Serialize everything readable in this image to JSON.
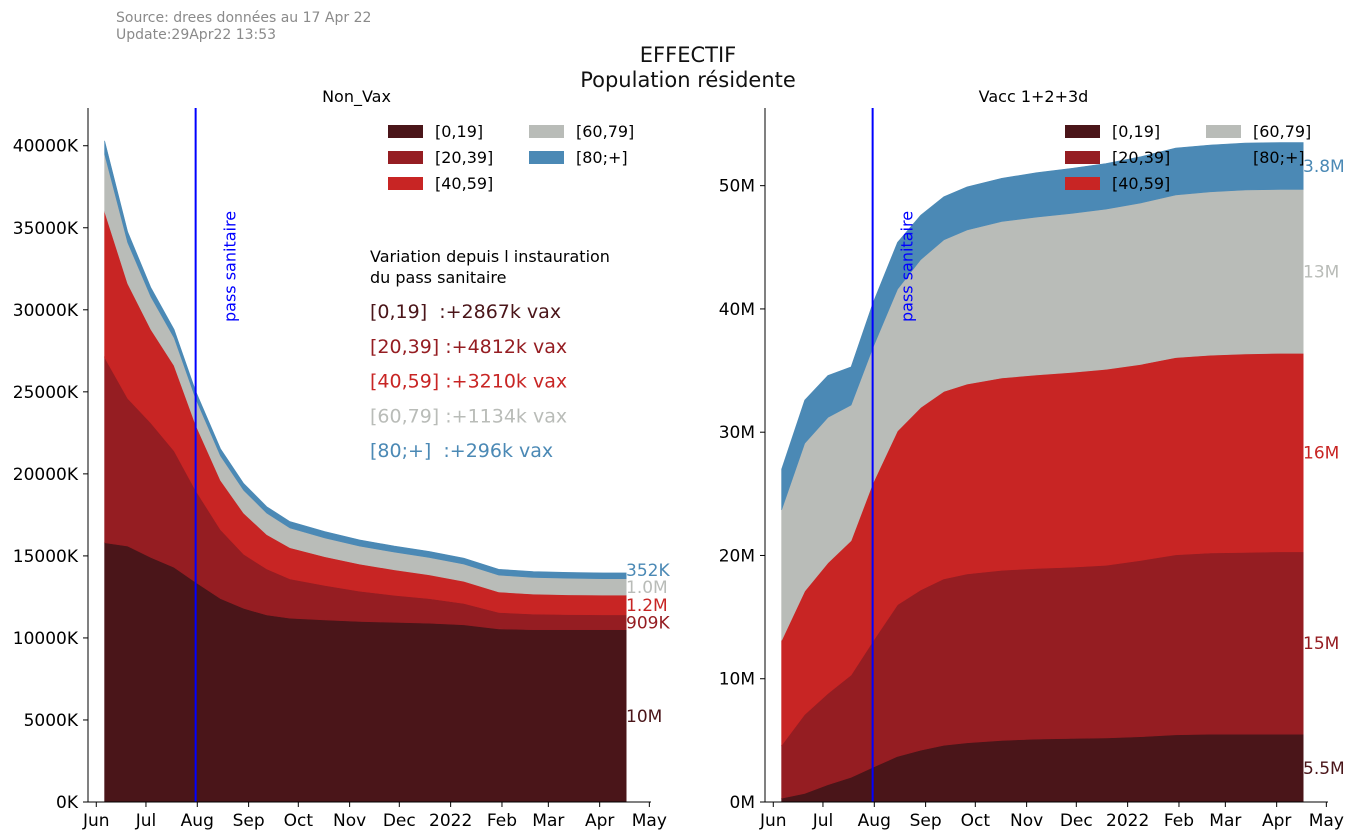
{
  "source_line": "Source: drees données au 17 Apr 22",
  "update_line": "Update:29Apr22 13:53",
  "title_line1": "EFFECTIF",
  "title_line2": "Population résidente",
  "colors": {
    "age_0_19": "#4a1519",
    "age_20_39": "#951d22",
    "age_40_59": "#c82524",
    "age_60_79": "#b9bcb8",
    "age_80_plus": "#4b89b5",
    "vline": "#0000ff"
  },
  "chart_data": [
    {
      "type": "area",
      "stacked": true,
      "title": "Non_Vax",
      "x_tick_labels": [
        "Jun",
        "Jul",
        "Aug",
        "Sep",
        "Oct",
        "Nov",
        "Dec",
        "2022",
        "Feb",
        "Mar",
        "Apr",
        "May"
      ],
      "x_ticks": [
        "2021-06-01",
        "2021-07-01",
        "2021-08-01",
        "2021-09-01",
        "2021-10-01",
        "2021-11-01",
        "2021-12-01",
        "2022-01-01",
        "2022-02-01",
        "2022-03-01",
        "2022-04-01",
        "2022-05-01"
      ],
      "xlim": [
        "2021-05-27",
        "2022-05-02"
      ],
      "ylim": [
        0,
        42300
      ],
      "y_ticks": [
        0,
        5000,
        10000,
        15000,
        20000,
        25000,
        30000,
        35000,
        40000
      ],
      "y_tick_labels": [
        "0K",
        "5000K",
        "10000K",
        "15000K",
        "20000K",
        "25000K",
        "30000K",
        "35000K",
        "40000K"
      ],
      "vertical_line": {
        "x": "2021-07-31",
        "label": "pass sanitaire"
      },
      "legend_position": "top-right",
      "legend_columns": 2,
      "x": [
        "2021-06-06",
        "2021-06-20",
        "2021-07-04",
        "2021-07-18",
        "2021-07-31",
        "2021-08-15",
        "2021-08-29",
        "2021-09-12",
        "2021-09-26",
        "2021-10-17",
        "2021-11-07",
        "2021-11-28",
        "2021-12-19",
        "2022-01-09",
        "2022-01-30",
        "2022-02-20",
        "2022-03-13",
        "2022-04-03",
        "2022-04-17"
      ],
      "series": [
        {
          "name": "[0,19]",
          "values": [
            15800,
            15600,
            14900,
            14300,
            13400,
            12400,
            11800,
            11400,
            11200,
            11100,
            11000,
            10950,
            10900,
            10800,
            10550,
            10500,
            10500,
            10500,
            10500
          ]
        },
        {
          "name": "[20,39]",
          "values": [
            11300,
            9000,
            8200,
            7100,
            5600,
            4200,
            3300,
            2800,
            2400,
            2100,
            1850,
            1650,
            1500,
            1300,
            1000,
            950,
            920,
            910,
            909
          ]
        },
        {
          "name": "[40,59]",
          "values": [
            8900,
            7000,
            5700,
            5200,
            4000,
            3000,
            2500,
            2100,
            1900,
            1750,
            1650,
            1550,
            1450,
            1350,
            1250,
            1220,
            1210,
            1200,
            1200
          ]
        },
        {
          "name": "[60,79]",
          "values": [
            3500,
            2500,
            2000,
            1700,
            1600,
            1500,
            1400,
            1300,
            1200,
            1150,
            1100,
            1080,
            1060,
            1050,
            1030,
            1020,
            1010,
            1000,
            1000
          ]
        },
        {
          "name": "[80;+]",
          "values": [
            800,
            650,
            550,
            500,
            450,
            430,
            410,
            400,
            390,
            380,
            375,
            370,
            365,
            360,
            355,
            354,
            353,
            352,
            352
          ]
        }
      ],
      "end_labels": [
        "10M",
        "909K",
        "1.2M",
        "1.0M",
        "352K"
      ],
      "annotation_title_line1": "Variation depuis l instauration",
      "annotation_title_line2": "du pass sanitaire",
      "annotations": [
        "[0,19]  :+2867k vax",
        "[20,39] :+4812k vax",
        "[40,59] :+3210k vax",
        "[60,79] :+1134k vax",
        "[80;+]  :+296k vax"
      ]
    },
    {
      "type": "area",
      "stacked": true,
      "title": "Vacc 1+2+3d",
      "x_tick_labels": [
        "Jun",
        "Jul",
        "Aug",
        "Sep",
        "Oct",
        "Nov",
        "Dec",
        "2022",
        "Feb",
        "Mar",
        "Apr",
        "May"
      ],
      "x_ticks": [
        "2021-06-01",
        "2021-07-01",
        "2021-08-01",
        "2021-09-01",
        "2021-10-01",
        "2021-11-01",
        "2021-12-01",
        "2022-01-01",
        "2022-02-01",
        "2022-03-01",
        "2022-04-01",
        "2022-05-01"
      ],
      "xlim": [
        "2021-05-27",
        "2022-05-02"
      ],
      "ylim": [
        0,
        56300000
      ],
      "y_ticks": [
        0,
        10000000,
        20000000,
        30000000,
        40000000,
        50000000
      ],
      "y_tick_labels": [
        "0M",
        "10M",
        "20M",
        "30M",
        "40M",
        "50M"
      ],
      "vertical_line": {
        "x": "2021-07-31",
        "label": "pass sanitaire"
      },
      "legend_position": "top-right",
      "legend_columns": 2,
      "x": [
        "2021-06-06",
        "2021-06-20",
        "2021-07-04",
        "2021-07-18",
        "2021-07-31",
        "2021-08-15",
        "2021-08-29",
        "2021-09-12",
        "2021-09-26",
        "2021-10-17",
        "2021-11-07",
        "2021-11-28",
        "2021-12-19",
        "2022-01-09",
        "2022-01-30",
        "2022-02-20",
        "2022-03-13",
        "2022-04-03",
        "2022-04-17"
      ],
      "series": [
        {
          "name": "[0,19]",
          "values": [
            300000,
            700000,
            1400000,
            2000000,
            2800000,
            3700000,
            4200000,
            4600000,
            4800000,
            5000000,
            5100000,
            5150000,
            5200000,
            5300000,
            5450000,
            5500000,
            5500000,
            5500000,
            5500000
          ]
        },
        {
          "name": "[20,39]",
          "values": [
            4300000,
            6400000,
            7400000,
            8300000,
            10200000,
            12300000,
            13000000,
            13500000,
            13700000,
            13800000,
            13850000,
            13900000,
            14000000,
            14300000,
            14600000,
            14700000,
            14750000,
            14800000,
            14800000
          ]
        },
        {
          "name": "[40,59]",
          "values": [
            8500000,
            10000000,
            10600000,
            10900000,
            12800000,
            14100000,
            14800000,
            15200000,
            15400000,
            15600000,
            15700000,
            15800000,
            15900000,
            15900000,
            16000000,
            16050000,
            16100000,
            16100000,
            16100000
          ]
        },
        {
          "name": "[60,79]",
          "values": [
            10600000,
            12000000,
            11800000,
            11000000,
            11000000,
            11500000,
            12000000,
            12300000,
            12500000,
            12700000,
            12800000,
            12900000,
            13000000,
            13100000,
            13200000,
            13250000,
            13300000,
            13300000,
            13300000
          ]
        },
        {
          "name": "[80;+]",
          "values": [
            3300000,
            3500000,
            3400000,
            3100000,
            3600000,
            3800000,
            3600000,
            3500000,
            3500000,
            3500000,
            3600000,
            3650000,
            3700000,
            3750000,
            3800000,
            3800000,
            3800000,
            3800000,
            3800000
          ]
        }
      ],
      "end_labels": [
        "5.5M",
        "15M",
        "16M",
        "13M",
        "3.8M"
      ]
    }
  ]
}
